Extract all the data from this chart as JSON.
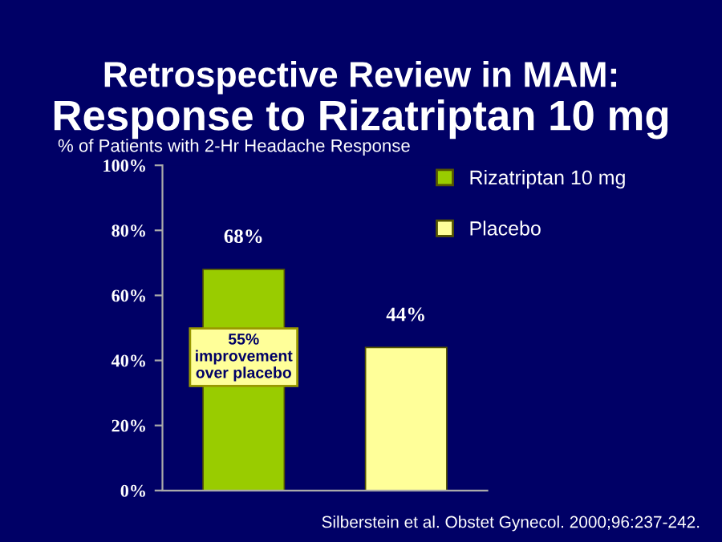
{
  "chart_data": {
    "type": "bar",
    "title": "Retrospective Review in MAM:",
    "subtitle": "Response to Rizatriptan 10 mg",
    "ylabel": "% of Patients with 2-Hr Headache Response",
    "categories": [
      null,
      null
    ],
    "series": [
      {
        "name": "Rizatriptan 10 mg",
        "color": "#99cc00",
        "values": [
          68,
          null
        ],
        "value_labels": [
          "68%",
          null
        ]
      },
      {
        "name": "Placebo",
        "color": "#ffff99",
        "values": [
          null,
          44
        ],
        "value_labels": [
          null,
          "44%"
        ]
      }
    ],
    "ylim": [
      0,
      100
    ],
    "yticks": [
      {
        "value": 0,
        "label": "0%"
      },
      {
        "value": 20,
        "label": "20%"
      },
      {
        "value": 40,
        "label": "40%"
      },
      {
        "value": 60,
        "label": "60%"
      },
      {
        "value": 80,
        "label": "80%"
      },
      {
        "value": 100,
        "label": "100%"
      }
    ],
    "tick_labels": "y",
    "grid": false,
    "legend": "right",
    "annotations": [
      "55%\nimprovement\nover placebo",
      "Silberstein et al. Obstet Gynecol. 2000;96:237-242."
    ]
  }
}
